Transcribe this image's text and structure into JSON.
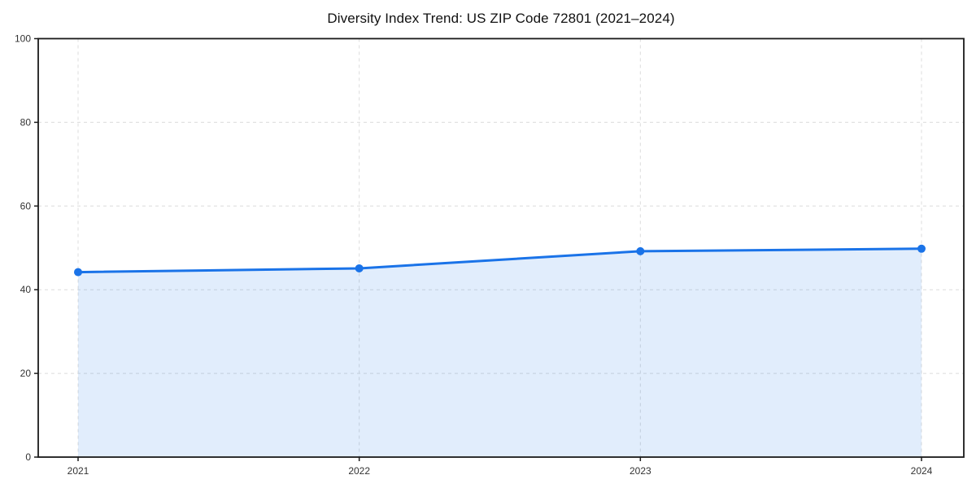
{
  "chart_data": {
    "type": "line",
    "title": "Diversity Index Trend: US ZIP Code 72801 (2021–2024)",
    "categories": [
      "2021",
      "2022",
      "2023",
      "2024"
    ],
    "series": [
      {
        "name": "Diversity Index",
        "values": [
          44.2,
          45.1,
          49.2,
          49.8
        ]
      }
    ],
    "xlabel": "",
    "ylabel": "",
    "ylim": [
      0,
      100
    ],
    "yticks": [
      0,
      20,
      40,
      60,
      80,
      100
    ],
    "grid": true,
    "grid_style": "dashed",
    "legend": "none",
    "area_fill": true,
    "marker": "circle",
    "colors": {
      "line": "#1a73e8",
      "marker": "#1a73e8",
      "fill": "rgba(26,115,232,0.13)",
      "grid": "#dcdcdc",
      "spine": "#1a1a1a",
      "tick_label": "#333333",
      "title": "#111111"
    }
  }
}
